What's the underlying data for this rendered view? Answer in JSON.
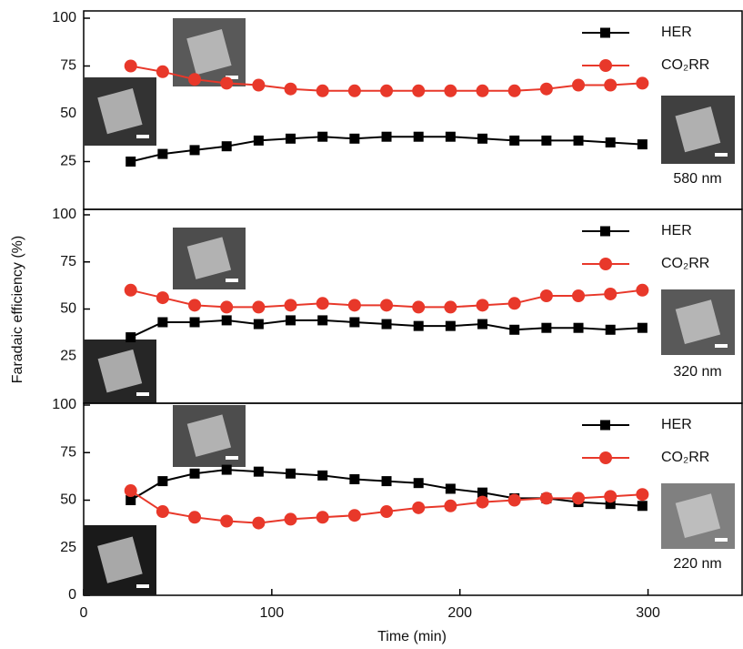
{
  "chart_data": [
    {
      "type": "line",
      "xlim": [
        0,
        350
      ],
      "ylim": [
        0,
        100
      ],
      "yticks": [
        25,
        50,
        75,
        100
      ],
      "x": [
        25,
        42,
        59,
        76,
        93,
        110,
        127,
        144,
        161,
        178,
        195,
        212,
        229,
        246,
        263,
        280,
        297
      ],
      "series": [
        {
          "name": "HER",
          "color": "#000000",
          "marker": "square",
          "values": [
            25,
            29,
            31,
            33,
            36,
            37,
            38,
            37,
            38,
            38,
            38,
            37,
            36,
            36,
            36,
            35,
            34
          ]
        },
        {
          "name": "CO₂RR",
          "color": "#e8382a",
          "marker": "circle",
          "values": [
            75,
            72,
            68,
            66,
            65,
            63,
            62,
            62,
            62,
            62,
            62,
            62,
            62,
            63,
            65,
            65,
            66
          ]
        }
      ],
      "annotation": "580 nm"
    },
    {
      "type": "line",
      "xlim": [
        0,
        350
      ],
      "ylim": [
        0,
        100
      ],
      "yticks": [
        25,
        50,
        75,
        100
      ],
      "ylabel": "Faradaic efficiency (%)",
      "x": [
        25,
        42,
        59,
        76,
        93,
        110,
        127,
        144,
        161,
        178,
        195,
        212,
        229,
        246,
        263,
        280,
        297
      ],
      "series": [
        {
          "name": "HER",
          "color": "#000000",
          "marker": "square",
          "values": [
            35,
            43,
            43,
            44,
            42,
            44,
            44,
            43,
            42,
            41,
            41,
            42,
            39,
            40,
            40,
            39,
            40
          ]
        },
        {
          "name": "CO₂RR",
          "color": "#e8382a",
          "marker": "circle",
          "values": [
            60,
            56,
            52,
            51,
            51,
            52,
            53,
            52,
            52,
            51,
            51,
            52,
            53,
            57,
            57,
            58,
            60
          ]
        }
      ],
      "annotation": "320 nm"
    },
    {
      "type": "line",
      "xlim": [
        0,
        350
      ],
      "ylim": [
        0,
        100
      ],
      "yticks": [
        0,
        25,
        50,
        75,
        100
      ],
      "xticks": [
        0,
        100,
        200,
        300
      ],
      "xlabel": "Time (min)",
      "x": [
        25,
        42,
        59,
        76,
        93,
        110,
        127,
        144,
        161,
        178,
        195,
        212,
        229,
        246,
        263,
        280,
        297
      ],
      "series": [
        {
          "name": "HER",
          "color": "#000000",
          "marker": "square",
          "values": [
            50,
            60,
            64,
            66,
            65,
            64,
            63,
            61,
            60,
            59,
            56,
            54,
            51,
            51,
            49,
            48,
            47
          ]
        },
        {
          "name": "CO₂RR",
          "color": "#e8382a",
          "marker": "circle",
          "values": [
            55,
            44,
            41,
            39,
            38,
            40,
            41,
            42,
            44,
            46,
            47,
            49,
            50,
            51,
            51,
            52,
            53
          ]
        }
      ],
      "annotation": "220 nm"
    }
  ]
}
